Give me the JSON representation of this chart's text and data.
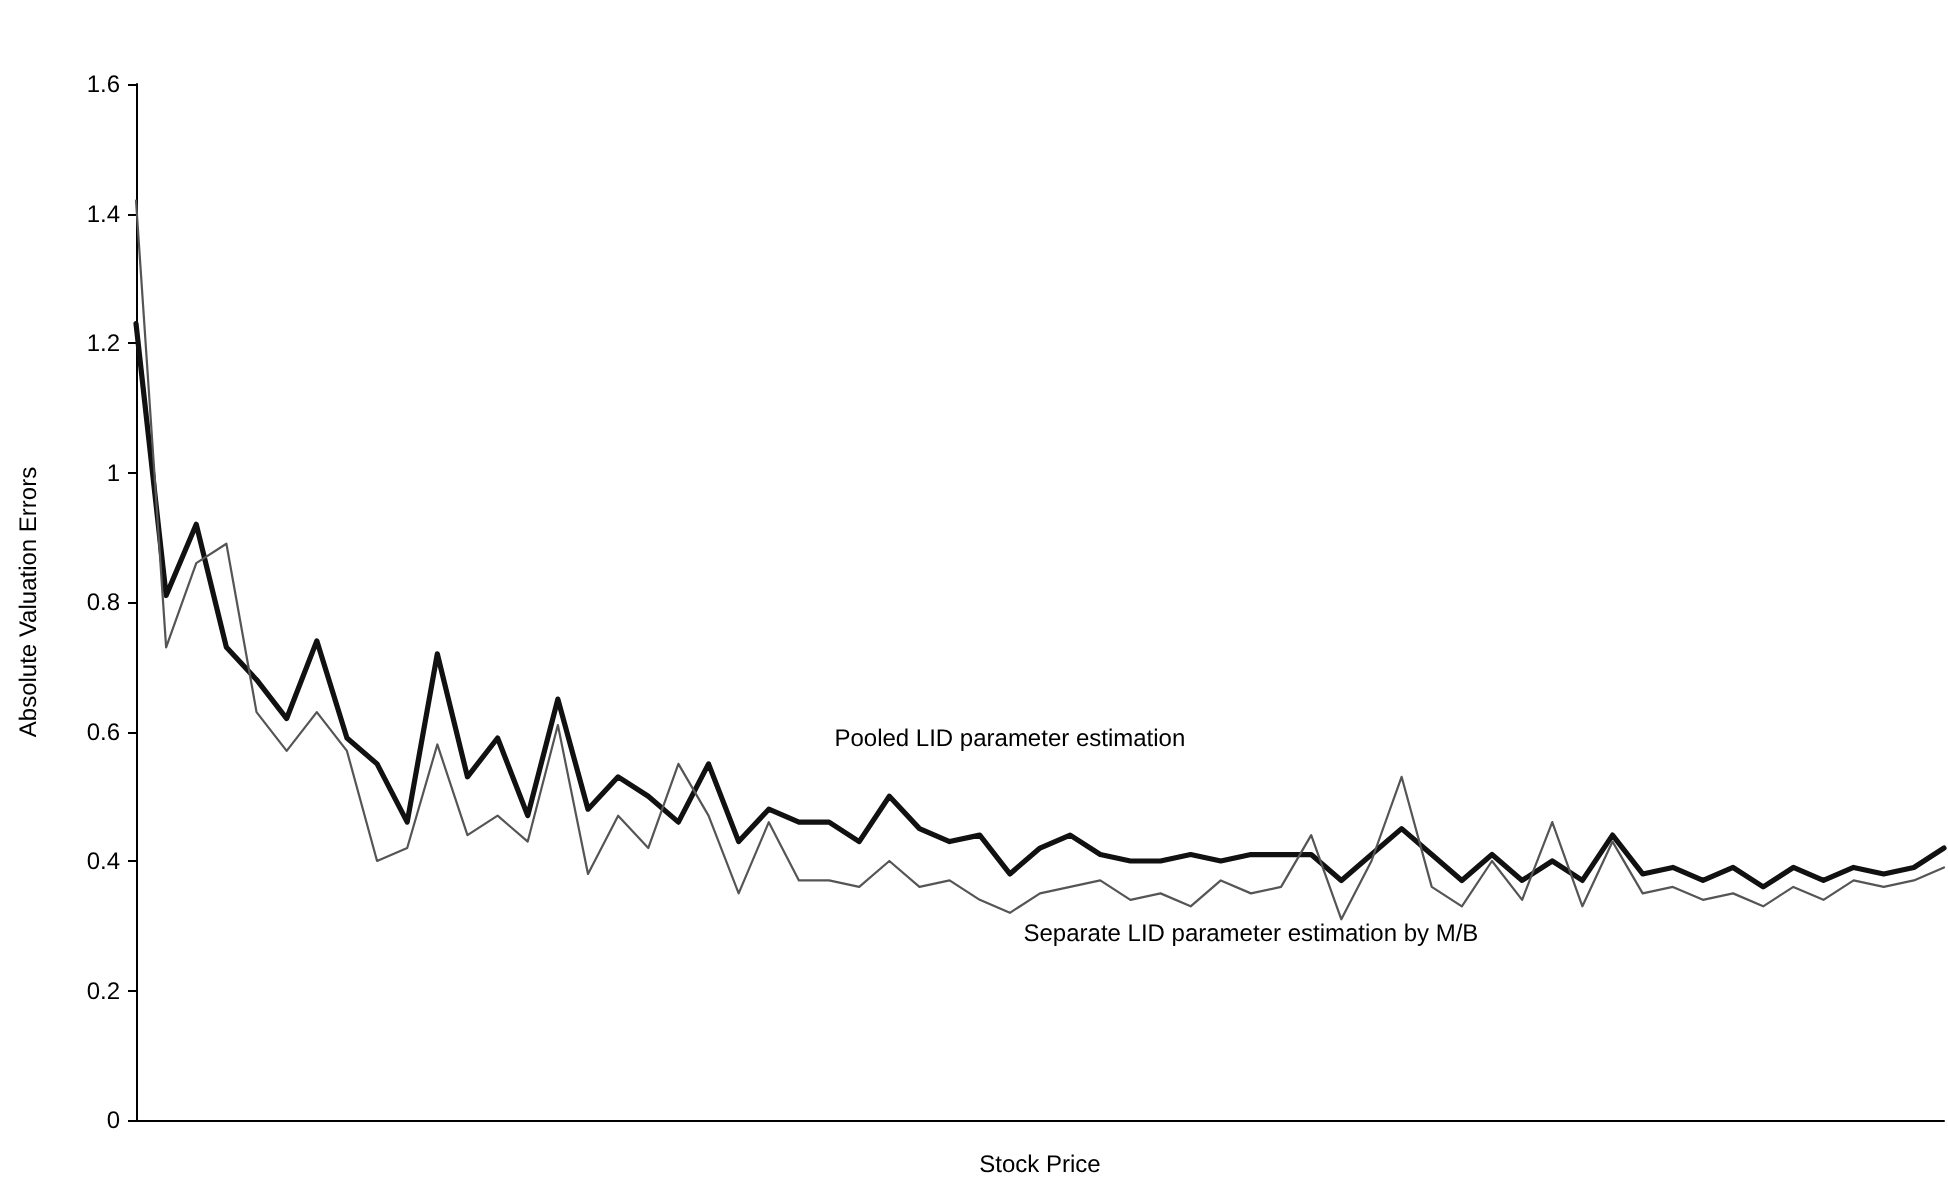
{
  "chart_data": {
    "type": "line",
    "xlabel": "Stock Price",
    "ylabel": "Absolute Valuation Errors",
    "categories": [
      null,
      null,
      null,
      null,
      null,
      null,
      null,
      null,
      null,
      null,
      null,
      null,
      null,
      null,
      null,
      null,
      null,
      null,
      null,
      null,
      null,
      null,
      null,
      null,
      null,
      null,
      null,
      null,
      null,
      null,
      null,
      null,
      null,
      null,
      null,
      null,
      null,
      null,
      null,
      null,
      null,
      null,
      null,
      null,
      null,
      null,
      null,
      null,
      null,
      null,
      null,
      null,
      null,
      null,
      null,
      null,
      null,
      null,
      null,
      null,
      null
    ],
    "series": [
      {
        "name": "Pooled LID parameter estimation",
        "color": "#111111",
        "values": [
          1.23,
          0.81,
          0.92,
          0.73,
          0.68,
          0.62,
          0.74,
          0.59,
          0.55,
          0.46,
          0.72,
          0.53,
          0.59,
          0.47,
          0.65,
          0.48,
          0.53,
          0.5,
          0.46,
          0.55,
          0.43,
          0.48,
          0.46,
          0.46,
          0.43,
          0.5,
          0.45,
          0.43,
          0.44,
          0.38,
          0.42,
          0.44,
          0.41,
          0.4,
          0.4,
          0.41,
          0.4,
          0.41,
          0.41,
          0.41,
          0.37,
          0.41,
          0.45,
          0.41,
          0.37,
          0.41,
          0.37,
          0.4,
          0.37,
          0.44,
          0.38,
          0.39,
          0.37,
          0.39,
          0.36,
          0.39,
          0.37,
          0.39,
          0.38,
          0.39,
          0.42
        ]
      },
      {
        "name": "Separate LID parameter estimation by M/B",
        "color": "#555555",
        "values": [
          1.42,
          0.73,
          0.86,
          0.89,
          0.63,
          0.57,
          0.63,
          0.57,
          0.4,
          0.42,
          0.58,
          0.44,
          0.47,
          0.43,
          0.61,
          0.38,
          0.47,
          0.42,
          0.55,
          0.47,
          0.35,
          0.46,
          0.37,
          0.37,
          0.36,
          0.4,
          0.36,
          0.37,
          0.34,
          0.32,
          0.35,
          0.36,
          0.37,
          0.34,
          0.35,
          0.33,
          0.37,
          0.35,
          0.36,
          0.44,
          0.31,
          0.4,
          0.53,
          0.36,
          0.33,
          0.4,
          0.34,
          0.46,
          0.33,
          0.43,
          0.35,
          0.36,
          0.34,
          0.35,
          0.33,
          0.36,
          0.34,
          0.37,
          0.36,
          0.37,
          0.39
        ]
      }
    ],
    "ylim": [
      0,
      1.6
    ],
    "yticks": [
      0,
      0.2,
      0.4,
      0.6,
      0.8,
      1,
      1.2,
      1.4,
      1.6
    ],
    "grid": false,
    "legend": false,
    "marker": "none",
    "line_style": "solid"
  }
}
